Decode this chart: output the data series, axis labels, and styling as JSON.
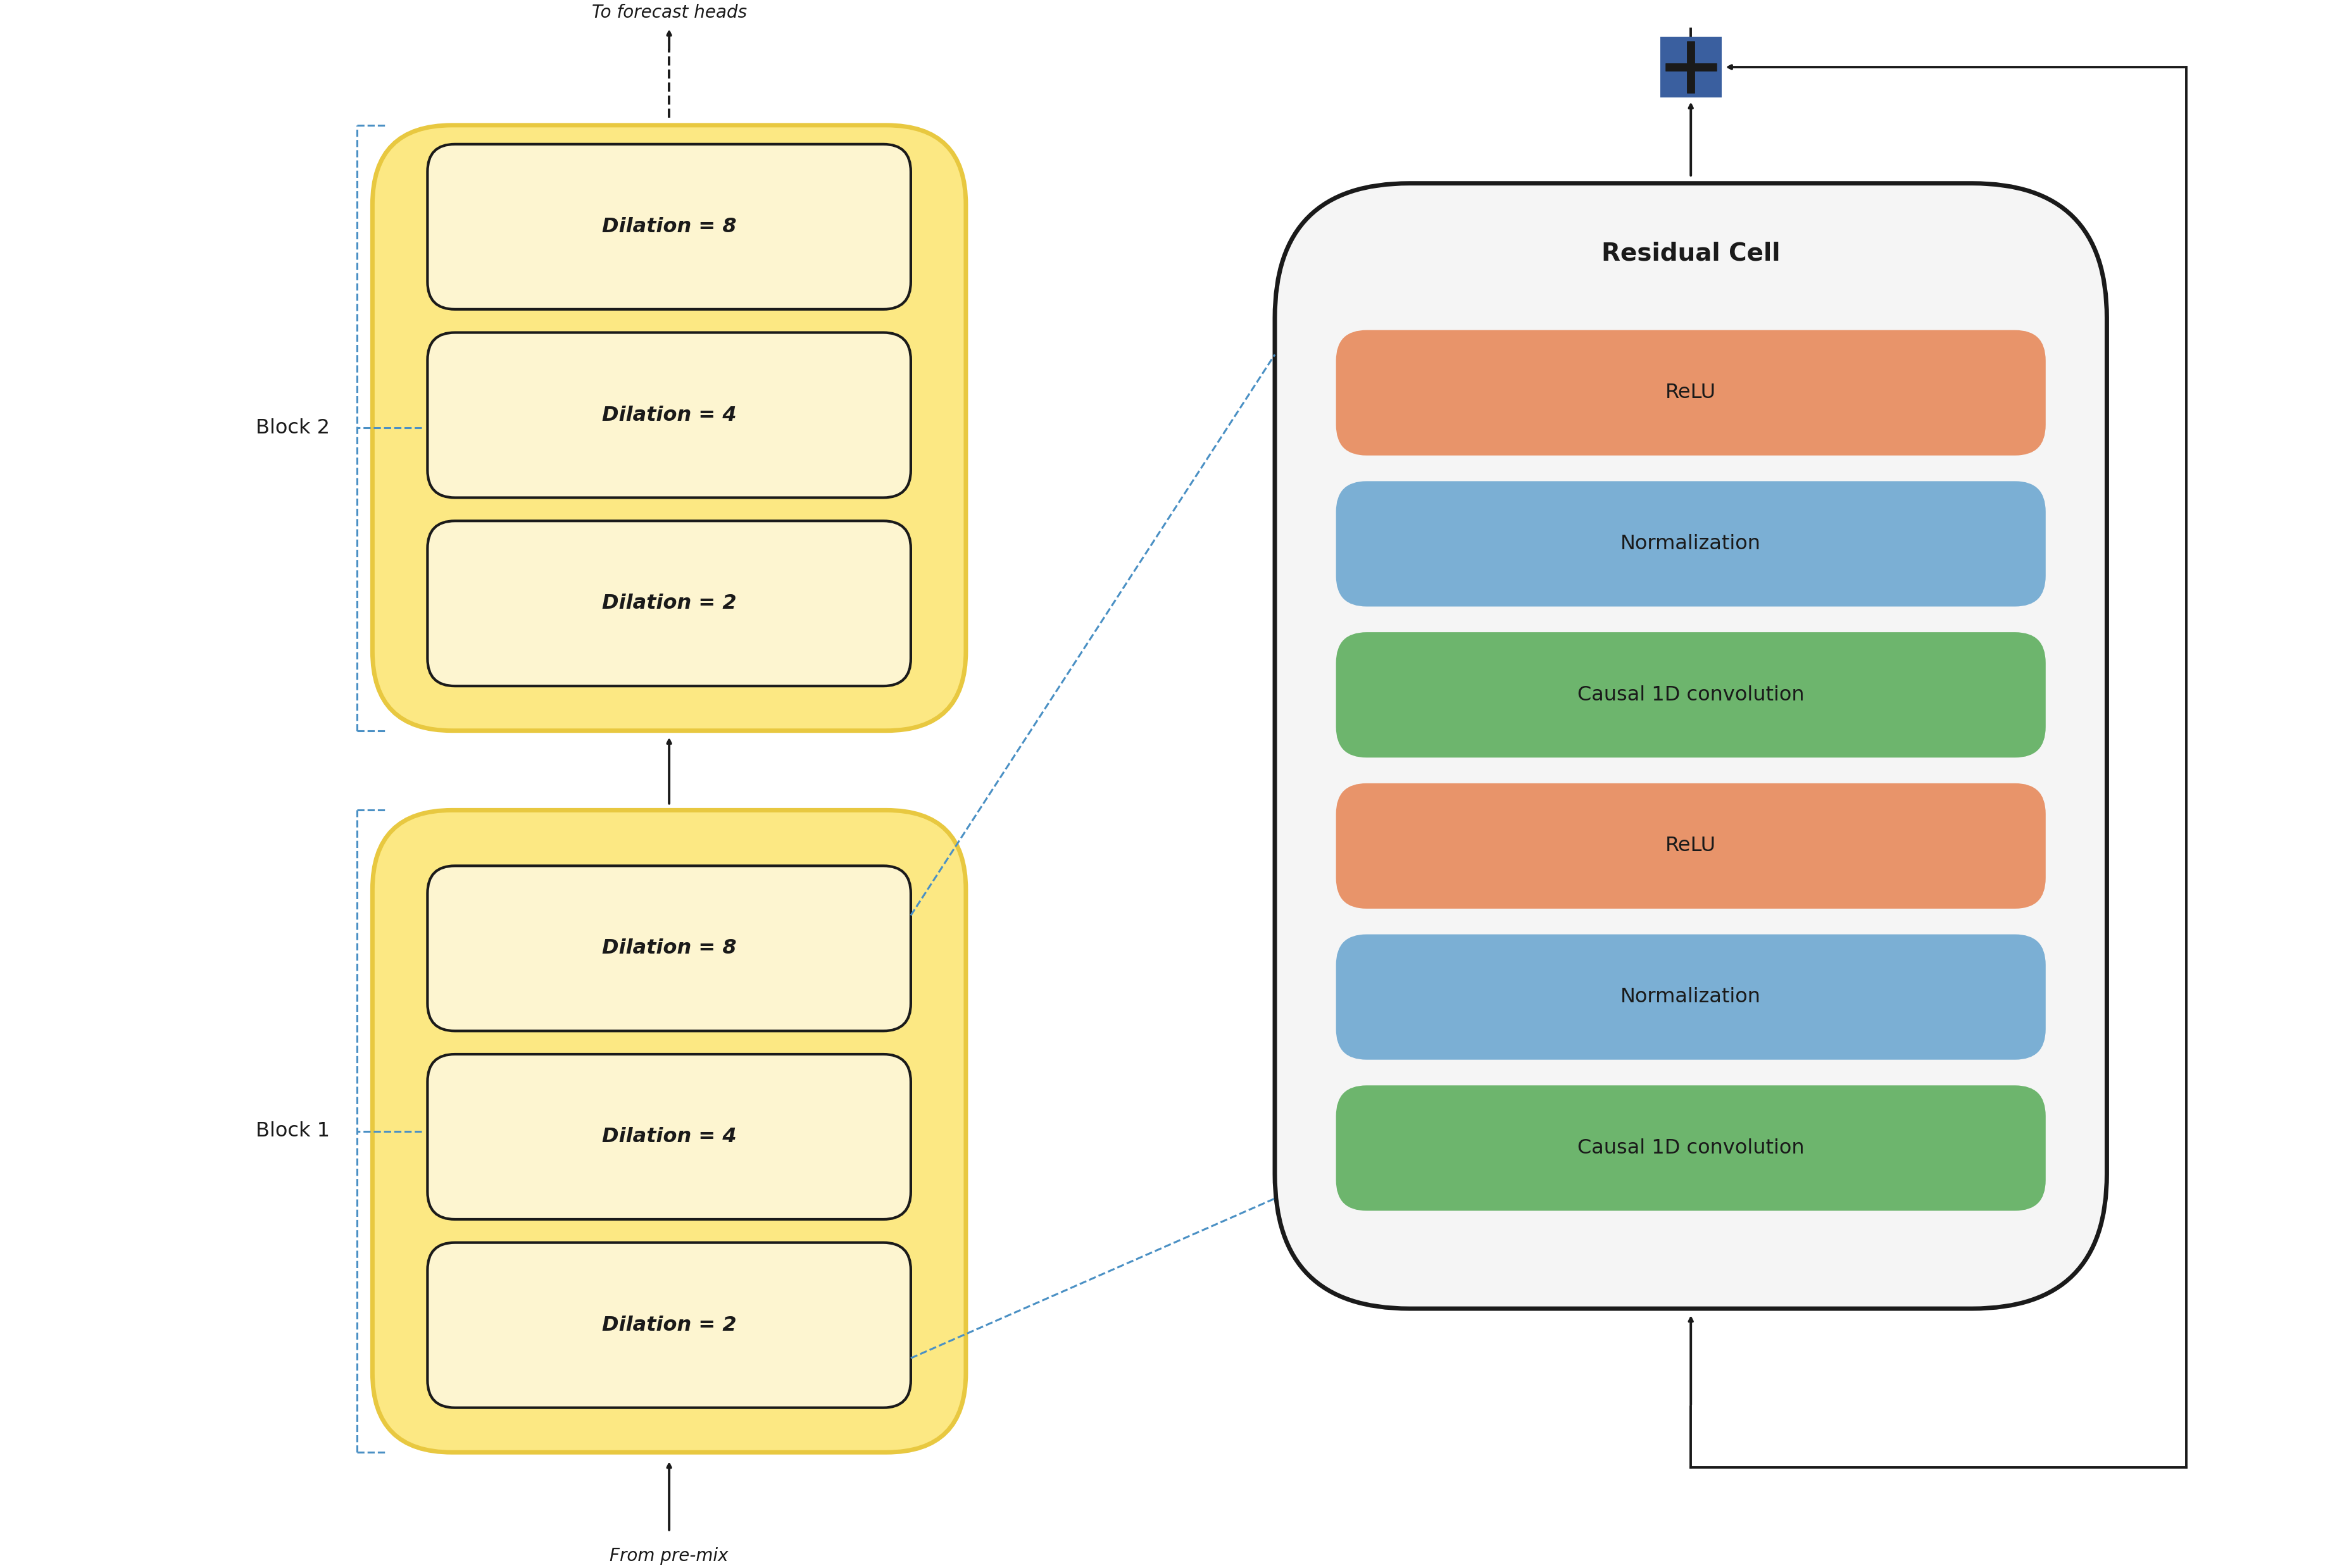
{
  "fig_width": 36.81,
  "fig_height": 24.78,
  "bg_color": "#ffffff",
  "block1_cells": [
    "Dilation = 8",
    "Dilation = 4",
    "Dilation = 2"
  ],
  "block2_cells": [
    "Dilation = 8",
    "Dilation = 4",
    "Dilation = 2"
  ],
  "cell_fill": "#fdf5d0",
  "cell_edge": "#1a1a1a",
  "block_outer_fill": "#fce883",
  "block_outer_edge": "#e8c840",
  "residual_cells_top_to_bottom": [
    "ReLU",
    "Normalization",
    "Causal 1D convolution",
    "ReLU",
    "Normalization",
    "Causal 1D convolution"
  ],
  "residual_colors": [
    "#e8946a",
    "#7bafd4",
    "#6db56d",
    "#e8946a",
    "#7bafd4",
    "#6db56d"
  ],
  "residual_title": "Residual Cell",
  "residual_bg": "#f5f5f5",
  "residual_edge": "#1a1a1a",
  "block1_label": "Block 1",
  "block2_label": "Block 2",
  "label_from": "From pre-mix",
  "label_to": "To forecast heads",
  "plus_color": "#1a1a1a",
  "arrow_color": "#1a1a1a",
  "dashed_line_color": "#4a90c4",
  "brace_color": "#4a90c4"
}
